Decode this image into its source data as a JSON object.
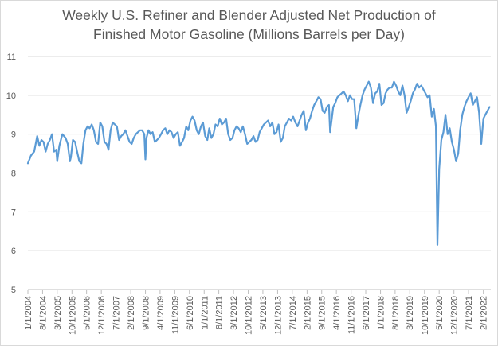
{
  "chart_data": {
    "type": "line",
    "title_lines": [
      "Weekly U.S. Refiner and Blender Adjusted Net Production of",
      "Finished Motor Gasoline  (Millions Barrels per Day)"
    ],
    "xlabel": "",
    "ylabel": "",
    "ylim": [
      5,
      11
    ],
    "y_ticks": [
      "5",
      "6",
      "7",
      "8",
      "9",
      "10",
      "11"
    ],
    "x_tick_labels": [
      "1/1/2004",
      "8/1/2004",
      "3/1/2005",
      "10/1/2005",
      "5/1/2006",
      "12/1/2006",
      "7/1/2007",
      "2/1/2008",
      "9/1/2008",
      "4/1/2009",
      "11/1/2009",
      "6/1/2010",
      "1/1/2011",
      "8/1/2011",
      "3/1/2012",
      "10/1/2012",
      "5/1/2013",
      "12/1/2013",
      "7/1/2014",
      "2/1/2015",
      "9/1/2015",
      "4/1/2016",
      "11/1/2016",
      "6/1/2017",
      "1/1/2018",
      "8/1/2018",
      "3/1/2019",
      "10/1/2019",
      "5/1/2020",
      "12/1/2020",
      "7/1/2021",
      "2/1/2022"
    ],
    "grid": "horizontal",
    "line_color": "#5b9bd5",
    "series": [
      {
        "values": [
          [
            "2004-01-01",
            8.25
          ],
          [
            "2004-02-15",
            8.45
          ],
          [
            "2004-04-01",
            8.55
          ],
          [
            "2004-05-15",
            8.95
          ],
          [
            "2004-06-15",
            8.7
          ],
          [
            "2004-07-15",
            8.85
          ],
          [
            "2004-08-15",
            8.8
          ],
          [
            "2004-09-15",
            8.55
          ],
          [
            "2004-10-15",
            8.75
          ],
          [
            "2004-11-15",
            8.85
          ],
          [
            "2004-12-15",
            9.0
          ],
          [
            "2005-01-15",
            8.55
          ],
          [
            "2005-02-15",
            8.6
          ],
          [
            "2005-03-01",
            8.3
          ],
          [
            "2005-04-01",
            8.7
          ],
          [
            "2005-05-15",
            9.0
          ],
          [
            "2005-07-01",
            8.9
          ],
          [
            "2005-08-01",
            8.75
          ],
          [
            "2005-09-01",
            8.3
          ],
          [
            "2005-09-15",
            8.4
          ],
          [
            "2005-10-15",
            8.85
          ],
          [
            "2005-11-15",
            8.8
          ],
          [
            "2005-12-15",
            8.55
          ],
          [
            "2006-01-15",
            8.3
          ],
          [
            "2006-02-15",
            8.25
          ],
          [
            "2006-03-15",
            8.75
          ],
          [
            "2006-04-15",
            9.1
          ],
          [
            "2006-05-15",
            9.2
          ],
          [
            "2006-06-15",
            9.15
          ],
          [
            "2006-07-15",
            9.25
          ],
          [
            "2006-08-15",
            9.1
          ],
          [
            "2006-09-15",
            8.8
          ],
          [
            "2006-10-15",
            8.75
          ],
          [
            "2006-11-15",
            9.3
          ],
          [
            "2006-12-15",
            9.2
          ],
          [
            "2007-01-15",
            8.8
          ],
          [
            "2007-02-15",
            8.75
          ],
          [
            "2007-03-15",
            8.6
          ],
          [
            "2007-04-15",
            9.1
          ],
          [
            "2007-05-15",
            9.3
          ],
          [
            "2007-06-15",
            9.25
          ],
          [
            "2007-07-15",
            9.2
          ],
          [
            "2007-08-15",
            8.85
          ],
          [
            "2007-09-15",
            8.95
          ],
          [
            "2007-10-15",
            9.0
          ],
          [
            "2007-11-15",
            9.1
          ],
          [
            "2007-12-15",
            8.95
          ],
          [
            "2008-01-15",
            8.8
          ],
          [
            "2008-02-15",
            8.75
          ],
          [
            "2008-03-15",
            8.9
          ],
          [
            "2008-04-15",
            9.0
          ],
          [
            "2008-05-15",
            9.05
          ],
          [
            "2008-06-15",
            9.1
          ],
          [
            "2008-07-15",
            9.1
          ],
          [
            "2008-08-15",
            9.0
          ],
          [
            "2008-09-01",
            8.35
          ],
          [
            "2008-09-15",
            8.9
          ],
          [
            "2008-10-15",
            9.1
          ],
          [
            "2008-11-15",
            9.0
          ],
          [
            "2008-12-15",
            9.05
          ],
          [
            "2009-01-15",
            8.8
          ],
          [
            "2009-02-15",
            8.85
          ],
          [
            "2009-03-15",
            8.9
          ],
          [
            "2009-04-15",
            9.0
          ],
          [
            "2009-05-15",
            9.1
          ],
          [
            "2009-06-15",
            9.15
          ],
          [
            "2009-07-15",
            9.0
          ],
          [
            "2009-08-15",
            9.1
          ],
          [
            "2009-09-15",
            9.05
          ],
          [
            "2009-10-15",
            8.9
          ],
          [
            "2009-11-15",
            9.0
          ],
          [
            "2009-12-15",
            9.05
          ],
          [
            "2010-01-15",
            8.7
          ],
          [
            "2010-02-15",
            8.8
          ],
          [
            "2010-03-15",
            8.9
          ],
          [
            "2010-04-15",
            9.2
          ],
          [
            "2010-05-15",
            9.1
          ],
          [
            "2010-06-15",
            9.35
          ],
          [
            "2010-07-15",
            9.45
          ],
          [
            "2010-08-15",
            9.35
          ],
          [
            "2010-09-15",
            9.1
          ],
          [
            "2010-10-15",
            9.0
          ],
          [
            "2010-11-15",
            9.2
          ],
          [
            "2010-12-15",
            9.3
          ],
          [
            "2011-01-15",
            8.95
          ],
          [
            "2011-02-15",
            8.85
          ],
          [
            "2011-03-15",
            9.15
          ],
          [
            "2011-04-15",
            8.9
          ],
          [
            "2011-05-15",
            9.0
          ],
          [
            "2011-06-15",
            9.25
          ],
          [
            "2011-07-15",
            9.2
          ],
          [
            "2011-08-15",
            9.4
          ],
          [
            "2011-09-15",
            9.25
          ],
          [
            "2011-10-15",
            9.3
          ],
          [
            "2011-11-15",
            9.4
          ],
          [
            "2011-12-15",
            9.0
          ],
          [
            "2012-01-15",
            8.85
          ],
          [
            "2012-02-15",
            8.9
          ],
          [
            "2012-03-15",
            9.1
          ],
          [
            "2012-04-15",
            9.2
          ],
          [
            "2012-05-15",
            9.15
          ],
          [
            "2012-06-15",
            9.05
          ],
          [
            "2012-07-15",
            9.2
          ],
          [
            "2012-08-15",
            9.0
          ],
          [
            "2012-09-15",
            8.75
          ],
          [
            "2012-10-15",
            8.8
          ],
          [
            "2012-11-15",
            8.85
          ],
          [
            "2012-12-15",
            8.95
          ],
          [
            "2013-01-15",
            8.8
          ],
          [
            "2013-02-15",
            8.85
          ],
          [
            "2013-03-15",
            9.05
          ],
          [
            "2013-04-15",
            9.15
          ],
          [
            "2013-05-15",
            9.25
          ],
          [
            "2013-06-15",
            9.3
          ],
          [
            "2013-07-15",
            9.35
          ],
          [
            "2013-08-15",
            9.2
          ],
          [
            "2013-09-15",
            9.3
          ],
          [
            "2013-10-15",
            9.0
          ],
          [
            "2013-11-15",
            9.05
          ],
          [
            "2013-12-15",
            9.25
          ],
          [
            "2014-01-15",
            8.8
          ],
          [
            "2014-02-15",
            8.9
          ],
          [
            "2014-03-15",
            9.2
          ],
          [
            "2014-04-15",
            9.3
          ],
          [
            "2014-05-15",
            9.4
          ],
          [
            "2014-06-15",
            9.35
          ],
          [
            "2014-07-15",
            9.45
          ],
          [
            "2014-08-15",
            9.3
          ],
          [
            "2014-09-15",
            9.2
          ],
          [
            "2014-10-15",
            9.35
          ],
          [
            "2014-11-15",
            9.5
          ],
          [
            "2014-12-15",
            9.6
          ],
          [
            "2015-01-15",
            9.1
          ],
          [
            "2015-02-15",
            9.3
          ],
          [
            "2015-03-15",
            9.4
          ],
          [
            "2015-04-15",
            9.6
          ],
          [
            "2015-05-15",
            9.75
          ],
          [
            "2015-06-15",
            9.85
          ],
          [
            "2015-07-15",
            9.95
          ],
          [
            "2015-08-15",
            9.9
          ],
          [
            "2015-09-15",
            9.6
          ],
          [
            "2015-10-15",
            9.55
          ],
          [
            "2015-11-15",
            9.7
          ],
          [
            "2015-12-15",
            9.75
          ],
          [
            "2016-01-01",
            9.05
          ],
          [
            "2016-02-15",
            9.7
          ],
          [
            "2016-03-15",
            9.8
          ],
          [
            "2016-04-15",
            9.95
          ],
          [
            "2016-05-15",
            10.0
          ],
          [
            "2016-06-15",
            10.05
          ],
          [
            "2016-07-15",
            10.1
          ],
          [
            "2016-08-15",
            10.0
          ],
          [
            "2016-09-15",
            9.85
          ],
          [
            "2016-10-15",
            10.0
          ],
          [
            "2016-11-15",
            9.9
          ],
          [
            "2016-12-15",
            9.9
          ],
          [
            "2017-01-15",
            9.15
          ],
          [
            "2017-02-15",
            9.5
          ],
          [
            "2017-03-15",
            9.75
          ],
          [
            "2017-04-15",
            10.0
          ],
          [
            "2017-05-15",
            10.15
          ],
          [
            "2017-06-15",
            10.25
          ],
          [
            "2017-07-15",
            10.35
          ],
          [
            "2017-08-15",
            10.2
          ],
          [
            "2017-09-15",
            9.8
          ],
          [
            "2017-10-15",
            10.05
          ],
          [
            "2017-11-15",
            10.1
          ],
          [
            "2017-12-15",
            10.3
          ],
          [
            "2018-01-15",
            9.75
          ],
          [
            "2018-02-15",
            9.8
          ],
          [
            "2018-03-15",
            10.05
          ],
          [
            "2018-04-15",
            10.15
          ],
          [
            "2018-05-15",
            10.2
          ],
          [
            "2018-06-15",
            10.2
          ],
          [
            "2018-07-15",
            10.35
          ],
          [
            "2018-08-15",
            10.25
          ],
          [
            "2018-09-15",
            10.1
          ],
          [
            "2018-10-15",
            10.0
          ],
          [
            "2018-11-15",
            10.25
          ],
          [
            "2018-12-15",
            10.0
          ],
          [
            "2019-01-15",
            9.55
          ],
          [
            "2019-02-15",
            9.7
          ],
          [
            "2019-03-15",
            9.85
          ],
          [
            "2019-04-15",
            10.05
          ],
          [
            "2019-05-15",
            10.15
          ],
          [
            "2019-06-15",
            10.3
          ],
          [
            "2019-07-15",
            10.2
          ],
          [
            "2019-08-15",
            10.25
          ],
          [
            "2019-09-15",
            10.15
          ],
          [
            "2019-10-15",
            10.05
          ],
          [
            "2019-11-15",
            9.95
          ],
          [
            "2019-12-15",
            10.0
          ],
          [
            "2020-01-15",
            9.45
          ],
          [
            "2020-02-15",
            9.65
          ],
          [
            "2020-03-15",
            9.2
          ],
          [
            "2020-04-06",
            6.15
          ],
          [
            "2020-05-01",
            8.1
          ],
          [
            "2020-06-01",
            8.85
          ],
          [
            "2020-07-01",
            9.05
          ],
          [
            "2020-08-01",
            9.5
          ],
          [
            "2020-09-01",
            9.0
          ],
          [
            "2020-10-01",
            9.15
          ],
          [
            "2020-11-01",
            8.8
          ],
          [
            "2020-12-01",
            8.6
          ],
          [
            "2021-01-01",
            8.3
          ],
          [
            "2021-02-01",
            8.5
          ],
          [
            "2021-03-01",
            9.1
          ],
          [
            "2021-04-01",
            9.5
          ],
          [
            "2021-05-01",
            9.7
          ],
          [
            "2021-06-01",
            9.85
          ],
          [
            "2021-07-01",
            9.95
          ],
          [
            "2021-08-01",
            10.05
          ],
          [
            "2021-09-01",
            9.75
          ],
          [
            "2021-10-01",
            9.85
          ],
          [
            "2021-11-01",
            9.95
          ],
          [
            "2021-12-01",
            9.55
          ],
          [
            "2022-01-01",
            8.75
          ],
          [
            "2022-02-01",
            9.4
          ],
          [
            "2022-03-01",
            9.5
          ],
          [
            "2022-04-01",
            9.6
          ],
          [
            "2022-05-01",
            9.7
          ]
        ]
      }
    ]
  }
}
